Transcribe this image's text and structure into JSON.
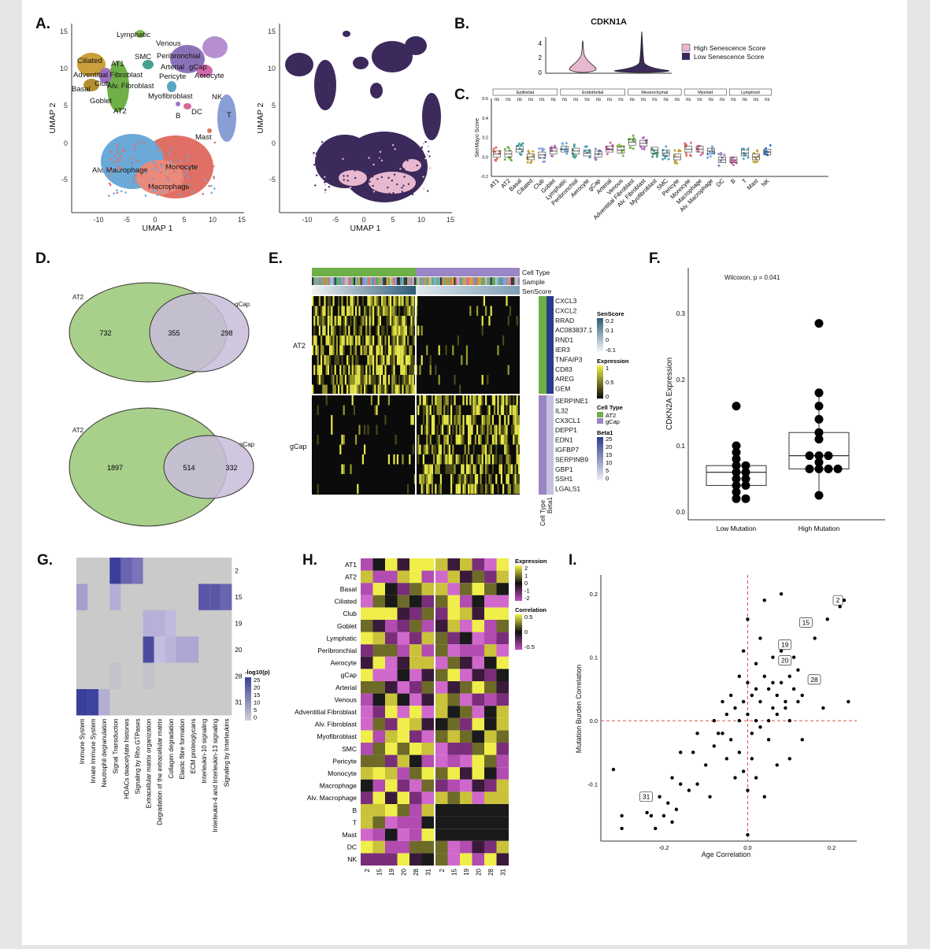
{
  "panel_letters": {
    "A": "A.",
    "B": "B.",
    "C": "C.",
    "D": "D.",
    "E": "E.",
    "F": "F.",
    "G": "G.",
    "H": "H.",
    "I": "I."
  },
  "panelA": {
    "ylabel": "UMAP 2",
    "xlabel": "UMAP 1",
    "x_ticks": [
      "-10",
      "-5",
      "0",
      "5",
      "10",
      "15"
    ],
    "y_ticks": [
      "15",
      "10",
      "5",
      "0",
      "-5"
    ],
    "labels": [
      "Lymphatic",
      "Venous",
      "Ciliated",
      "AT1",
      "SMC",
      "Peribronchial",
      "Adventitial Fibroblast",
      "Arterial",
      "gCap",
      "Club",
      "Alv. Fibroblast",
      "Pericyte",
      "Aerocyte",
      "Basal",
      "Goblet",
      "Myofibroblast",
      "AT2",
      "B",
      "DC",
      "NK",
      "T",
      "Mast",
      "Alv. Macrophage",
      "Monocyte",
      "Macrophage"
    ],
    "colors": {
      "macrophage": "#e07065",
      "alv_macrophage": "#6ba9d9",
      "nk": "#8a9ed6",
      "at2": "#6faf47",
      "ciliated": "#c9a03a",
      "senescence_high": "#e7b8cf",
      "senescence_low": "#3d2a5c"
    }
  },
  "panelB": {
    "title": "CDKN1A",
    "y_ticks": [
      "4",
      "2",
      "0"
    ],
    "legend": [
      "High Senescence Score",
      "Low Senescence Score"
    ]
  },
  "panelC": {
    "ylabel": "SenMayo Score",
    "groups": [
      "Epithelial",
      "Endothelial",
      "Mesenchymal",
      "Myeloid",
      "Lymphoid"
    ],
    "y_ticks": [
      "0.6",
      "0.4",
      "0.2",
      "0.0",
      "-0.2"
    ],
    "sig": "ns",
    "x_labels": [
      "AT1",
      "AT2",
      "Basal",
      "Ciliated",
      "Club",
      "Goblet",
      "Lymphatic",
      "Peribronchial",
      "Aerocyte",
      "gCap",
      "Arterial",
      "Venous",
      "Adventitial Fibroblast",
      "Alv. Fibroblast",
      "Myofibroblast",
      "SMC",
      "Pericyte",
      "Monocyte",
      "Macrophage",
      "Alv. Macrophage",
      "DC",
      "B",
      "T",
      "Mast",
      "NK"
    ]
  },
  "panelD": {
    "venn1": {
      "left_label": "AT2",
      "right_label": "gCap",
      "left": "732",
      "mid": "355",
      "right": "298"
    },
    "venn2": {
      "left_label": "AT2",
      "right_label": "gCap",
      "left": "1897",
      "mid": "514",
      "right": "332"
    }
  },
  "panelE": {
    "bar_labels": [
      "Cell Type",
      "Sample",
      "SenScore"
    ],
    "row_labels": [
      "AT2",
      "gCap"
    ],
    "genes_top": [
      "CXCL3",
      "CXCL2",
      "RRAD",
      "AC083837.1",
      "RND1",
      "IER3",
      "TNFAIP3",
      "CD83",
      "AREG",
      "GEM"
    ],
    "genes_bottom": [
      "SERPINE1",
      "IL32",
      "CX3CL1",
      "DEPP1",
      "EDN1",
      "IGFBP7",
      "SERPINB9",
      "GBP1",
      "SSH1",
      "LGALS1"
    ],
    "bottom_labels": [
      "Cell Type",
      "Beta1"
    ],
    "legend_senscore": {
      "title": "SenScore",
      "ticks": [
        "0.2",
        "0.1",
        "0",
        "-0.1"
      ]
    },
    "legend_expression": {
      "title": "Expression",
      "ticks": [
        "1",
        "0.5",
        "0"
      ]
    },
    "legend_celltype": {
      "title": "Cell Type",
      "items": [
        "AT2",
        "gCap"
      ]
    },
    "legend_beta": {
      "title": "Beta1",
      "ticks": [
        "25",
        "20",
        "15",
        "10",
        "5",
        "0"
      ]
    }
  },
  "panelF": {
    "annotation": "Wilcoxon, p = 0.041",
    "ylabel": "CDKN2A Expression",
    "y_ticks": [
      "0.3",
      "0.2",
      "0.1",
      "0.0"
    ],
    "categories": [
      "Low Mutation",
      "High Mutation"
    ]
  },
  "panelG": {
    "columns": [
      "Immune System",
      "Innate Immune System",
      "Neutrophil degranulation",
      "Signal Transduction",
      "HDACs deacetylate histones",
      "Signaling by Rho GTPases",
      "Extracellular matrix organization",
      "Degradation of the extracellular matrix",
      "Collagen degradation",
      "Elastic fibre formation",
      "ECM proteoglycans",
      "Interleukin-10 signaling",
      "Interleukin-4 and Interleukin-13 signaling",
      "Signaling by Interleukins"
    ],
    "rows": [
      "2",
      "15",
      "19",
      "20",
      "28",
      "31"
    ],
    "legend": {
      "title": "-log10(p)",
      "ticks": [
        "25",
        "20",
        "15",
        "10",
        "5",
        "0"
      ]
    }
  },
  "panelH": {
    "rows": [
      "AT1",
      "AT2",
      "Basal",
      "Ciliated",
      "Club",
      "Goblet",
      "Lymphatic",
      "Peribronchial",
      "Aerocyte",
      "gCap",
      "Arterial",
      "Venous",
      "Adventitial Fibroblast",
      "Alv. Fibroblast",
      "Myofibroblast",
      "SMC",
      "Pericyte",
      "Monocyte",
      "Macrophage",
      "Alv. Macrophage",
      "B",
      "T",
      "Mast",
      "DC",
      "NK"
    ],
    "cols": [
      "2",
      "15",
      "19",
      "20",
      "28",
      "31"
    ],
    "legend_expression": {
      "title": "Expression",
      "ticks": [
        "2",
        "1",
        "0",
        "-1",
        "-2"
      ]
    },
    "legend_correlation": {
      "title": "Correlation",
      "ticks": [
        "0.5",
        "0",
        "-0.5"
      ]
    }
  },
  "panelI": {
    "xlabel": "Age Correlation",
    "ylabel": "Mutation Burden Correlation",
    "x_ticks": [
      "-0.2",
      "0.0",
      "0.2"
    ],
    "y_ticks": [
      "0.2",
      "0.1",
      "0.0",
      "-0.1"
    ],
    "labeled": [
      "2",
      "15",
      "19",
      "20",
      "28",
      "31"
    ]
  },
  "chart_data": [
    {
      "type": "scatter",
      "title": "",
      "xlabel": "Age Correlation",
      "ylabel": "Mutation Burden Correlation",
      "xlim": [
        -0.35,
        0.26
      ],
      "ylim": [
        -0.19,
        0.23
      ],
      "labeled_points": [
        {
          "label": "2",
          "x": 0.23,
          "y": 0.19
        },
        {
          "label": "15",
          "x": 0.15,
          "y": 0.155
        },
        {
          "label": "19",
          "x": 0.1,
          "y": 0.12
        },
        {
          "label": "20",
          "x": 0.1,
          "y": 0.095
        },
        {
          "label": "28",
          "x": 0.17,
          "y": 0.065
        },
        {
          "label": "31",
          "x": -0.21,
          "y": -0.12
        }
      ],
      "points": [
        [
          -0.32,
          -0.077
        ],
        [
          -0.3,
          -0.15
        ],
        [
          -0.3,
          -0.17
        ],
        [
          -0.24,
          -0.145
        ],
        [
          -0.23,
          -0.15
        ],
        [
          -0.22,
          -0.17
        ],
        [
          -0.2,
          -0.15
        ],
        [
          -0.19,
          -0.13
        ],
        [
          -0.18,
          -0.16
        ],
        [
          -0.17,
          -0.14
        ],
        [
          -0.18,
          -0.09
        ],
        [
          -0.16,
          -0.1
        ],
        [
          -0.14,
          -0.11
        ],
        [
          -0.12,
          -0.1
        ],
        [
          -0.16,
          -0.05
        ],
        [
          -0.13,
          -0.05
        ],
        [
          -0.1,
          -0.07
        ],
        [
          -0.08,
          -0.04
        ],
        [
          -0.06,
          -0.02
        ],
        [
          -0.04,
          -0.03
        ],
        [
          -0.02,
          -0.05
        ],
        [
          -0.01,
          -0.08
        ],
        [
          0.0,
          -0.11
        ],
        [
          0.02,
          -0.09
        ],
        [
          0.04,
          -0.12
        ],
        [
          -0.12,
          -0.02
        ],
        [
          -0.08,
          0.0
        ],
        [
          -0.05,
          0.01
        ],
        [
          -0.03,
          0.02
        ],
        [
          -0.01,
          0.03
        ],
        [
          0.0,
          0.01
        ],
        [
          0.01,
          0.04
        ],
        [
          0.02,
          0.0
        ],
        [
          0.03,
          0.03
        ],
        [
          0.05,
          0.05
        ],
        [
          0.06,
          0.02
        ],
        [
          0.07,
          0.04
        ],
        [
          0.08,
          0.06
        ],
        [
          0.09,
          0.03
        ],
        [
          0.1,
          0.07
        ],
        [
          0.11,
          0.05
        ],
        [
          0.12,
          0.08
        ],
        [
          0.13,
          0.04
        ],
        [
          0.04,
          0.07
        ],
        [
          0.02,
          0.09
        ],
        [
          0.0,
          0.06
        ],
        [
          -0.02,
          0.07
        ],
        [
          -0.04,
          0.04
        ],
        [
          -0.06,
          0.03
        ],
        [
          0.06,
          0.1
        ],
        [
          0.08,
          0.11
        ],
        [
          0.03,
          0.13
        ],
        [
          0.0,
          0.16
        ],
        [
          0.04,
          0.19
        ],
        [
          0.08,
          0.2
        ],
        [
          0.14,
          0.16
        ],
        [
          0.16,
          0.13
        ],
        [
          0.19,
          0.16
        ],
        [
          0.18,
          0.02
        ],
        [
          0.13,
          -0.03
        ],
        [
          0.1,
          -0.06
        ],
        [
          0.05,
          -0.03
        ],
        [
          0.07,
          -0.07
        ],
        [
          -0.03,
          -0.09
        ],
        [
          -0.09,
          -0.12
        ],
        [
          0.24,
          0.03
        ],
        [
          0.22,
          0.18
        ],
        [
          -0.05,
          -0.06
        ],
        [
          -0.07,
          -0.02
        ],
        [
          0.01,
          -0.02
        ],
        [
          -0.02,
          0.0
        ],
        [
          0.03,
          -0.01
        ],
        [
          0.05,
          0.0
        ],
        [
          0.07,
          0.01
        ],
        [
          0.09,
          0.02
        ],
        [
          0.11,
          0.1
        ],
        [
          0.0,
          -0.18
        ],
        [
          0.01,
          -0.06
        ],
        [
          0.02,
          0.05
        ],
        [
          0.06,
          0.06
        ],
        [
          -0.01,
          0.11
        ],
        [
          0.1,
          0.0
        ],
        [
          0.12,
          0.03
        ]
      ]
    },
    {
      "type": "box",
      "title": "",
      "xlabel": "",
      "ylabel": "CDKN2A Expression",
      "ylim": [
        0.0,
        0.34
      ],
      "categories": [
        "Low Mutation",
        "High Mutation"
      ],
      "series": [
        {
          "values": [
            0.02,
            0.02,
            0.03,
            0.04,
            0.04,
            0.05,
            0.05,
            0.06,
            0.06,
            0.07,
            0.07,
            0.08,
            0.09,
            0.1,
            0.16
          ]
        },
        {
          "values": [
            0.025,
            0.065,
            0.065,
            0.065,
            0.065,
            0.075,
            0.085,
            0.085,
            0.085,
            0.11,
            0.12,
            0.14,
            0.16,
            0.18,
            0.285
          ]
        }
      ]
    }
  ]
}
